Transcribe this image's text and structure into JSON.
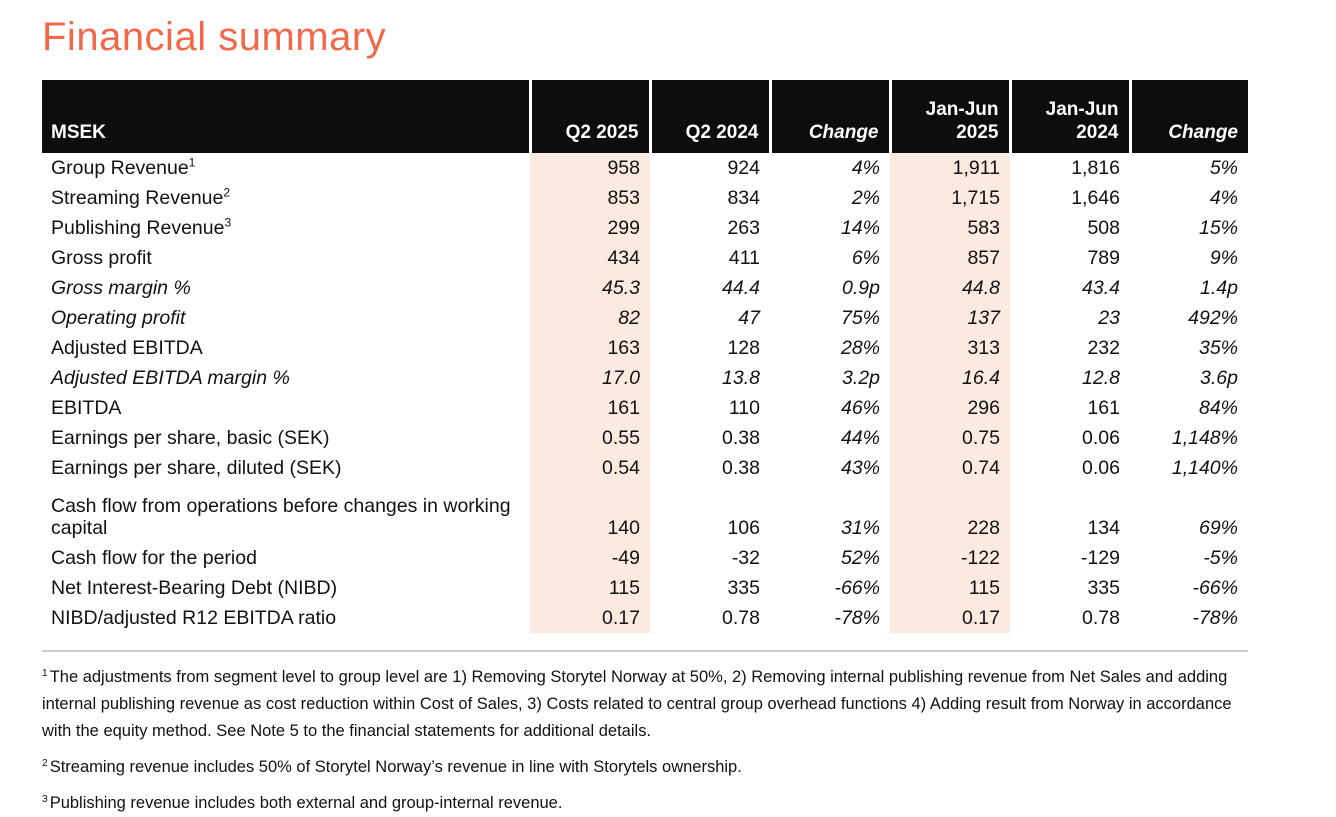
{
  "page": {
    "title": "Financial summary"
  },
  "colors": {
    "accent_orange": "#F1694A",
    "header_background": "#0D0D0D",
    "column_highlight": "#FBEAE0"
  },
  "table": {
    "columns": [
      {
        "label": "MSEK"
      },
      {
        "label": "Q2 2025"
      },
      {
        "label": "Q2 2024"
      },
      {
        "label": "Change"
      },
      {
        "label": "Jan-Jun 2025"
      },
      {
        "label": "Jan-Jun 2024"
      },
      {
        "label": "Change"
      }
    ],
    "rows": [
      {
        "label": "Group Revenue",
        "sup": "1",
        "values": [
          "958",
          "924",
          "4%",
          "1,911",
          "1,816",
          "5%"
        ]
      },
      {
        "label": "Streaming Revenue",
        "sup": "2",
        "values": [
          "853",
          "834",
          "2%",
          "1,715",
          "1,646",
          "4%"
        ]
      },
      {
        "label": "Publishing Revenue",
        "sup": "3",
        "values": [
          "299",
          "263",
          "14%",
          "583",
          "508",
          "15%"
        ]
      },
      {
        "label": "Gross profit",
        "values": [
          "434",
          "411",
          "6%",
          "857",
          "789",
          "9%"
        ]
      },
      {
        "label": "Gross margin %",
        "values": [
          "45.3",
          "44.4",
          "0.9p",
          "44.8",
          "43.4",
          "1.4p"
        ]
      },
      {
        "label": "Operating profit",
        "values": [
          "82",
          "47",
          "75%",
          "137",
          "23",
          "492%"
        ]
      },
      {
        "label": "Adjusted EBITDA",
        "values": [
          "163",
          "128",
          "28%",
          "313",
          "232",
          "35%"
        ]
      },
      {
        "label": "Adjusted EBITDA margin %",
        "values": [
          "17.0",
          "13.8",
          "3.2p",
          "16.4",
          "12.8",
          "3.6p"
        ]
      },
      {
        "label": "EBITDA",
        "values": [
          "161",
          "110",
          "46%",
          "296",
          "161",
          "84%"
        ]
      },
      {
        "label": "Earnings per share, basic (SEK)",
        "values": [
          "0.55",
          "0.38",
          "44%",
          "0.75",
          "0.06",
          "1,148%"
        ]
      },
      {
        "label": "Earnings per share, diluted (SEK)",
        "values": [
          "0.54",
          "0.38",
          "43%",
          "0.74",
          "0.06",
          "1,140%"
        ]
      },
      {
        "label": "Cash flow from operations before changes in working capital",
        "values": [
          "140",
          "106",
          "31%",
          "228",
          "134",
          "69%"
        ]
      },
      {
        "label": "Cash flow for the period",
        "values": [
          "-49",
          "-32",
          "52%",
          "-122",
          "-129",
          "-5%"
        ]
      },
      {
        "label": "Net Interest-Bearing Debt (NIBD)",
        "values": [
          "115",
          "335",
          "-66%",
          "115",
          "335",
          "-66%"
        ]
      },
      {
        "label": "NIBD/adjusted R12 EBITDA ratio",
        "values": [
          "0.17",
          "0.78",
          "-78%",
          "0.17",
          "0.78",
          "-78%"
        ]
      }
    ]
  },
  "footnotes": [
    {
      "sup": "1",
      "text": "The adjustments from segment level to group level are 1) Removing Storytel Norway at 50%, 2) Removing internal publishing revenue from Net Sales and adding internal publishing revenue as cost reduction within Cost of Sales, 3) Costs related to central group overhead functions 4) Adding result from Norway in accordance with the equity method. See Note 5 to the financial statements for additional details."
    },
    {
      "sup": "2",
      "text": "Streaming revenue includes 50% of Storytel Norway’s revenue in line with Storytels ownership."
    },
    {
      "sup": "3",
      "text": "Publishing revenue includes both external and group-internal revenue."
    }
  ]
}
